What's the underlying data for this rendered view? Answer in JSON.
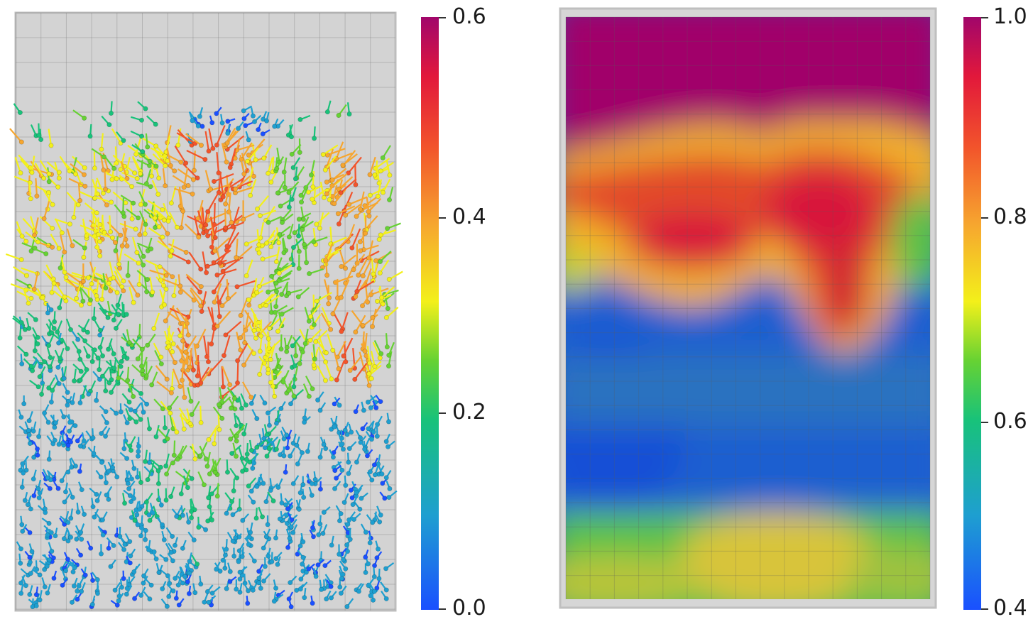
{
  "left_colorbar": {
    "colors": [
      "#1a50ff",
      "#1e9fd0",
      "#18c27a",
      "#66d233",
      "#f3f01a",
      "#f6a62f",
      "#f2542b",
      "#e2183b",
      "#a1066b"
    ],
    "ticks": [
      "0.6",
      "0.4",
      "0.2",
      "0.0"
    ]
  },
  "right_colorbar": {
    "colors": [
      "#1a50ff",
      "#1e9fd0",
      "#18c27a",
      "#66d233",
      "#f3f01a",
      "#f6a62f",
      "#f2542b",
      "#e2183b",
      "#a1066b"
    ],
    "ticks": [
      "1.0",
      "0.8",
      "0.6",
      "0.4"
    ]
  }
}
